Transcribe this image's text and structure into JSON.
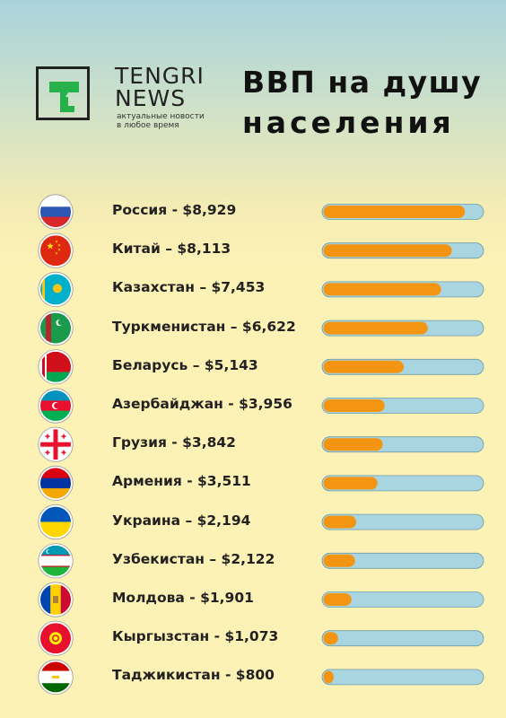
{
  "header": {
    "brand_line1": "TENGRI",
    "brand_line2": "NEWS",
    "tagline_line1": "актуальные новости",
    "tagline_line2": "в любое время",
    "title_line1": "ВВП на душу",
    "title_line2": "населения"
  },
  "colors": {
    "bar_fill": "#f39512",
    "bar_track": "#a9d5e0",
    "logo_green": "#26b14b"
  },
  "chart_data": {
    "type": "bar",
    "orientation": "horizontal",
    "title": "ВВП на душу населения",
    "labels": [
      "Россия - $8,929",
      "Китай – $8,113",
      "Казахстан – $7,453",
      "Туркменистан – $6,622",
      "Беларусь – $5,143",
      "Азербайджан - $3,956",
      "Грузия - $3,842",
      "Армения - $3,511",
      "Украина – $2,194",
      "Узбекистан – $2,122",
      "Молдова - $1,901",
      "Кыргызстан - $1,073",
      "Таджикистан - $800"
    ],
    "flag_icons": [
      "russia-flag-icon",
      "china-flag-icon",
      "kazakhstan-flag-icon",
      "turkmenistan-flag-icon",
      "belarus-flag-icon",
      "azerbaijan-flag-icon",
      "georgia-flag-icon",
      "armenia-flag-icon",
      "ukraine-flag-icon",
      "uzbekistan-flag-icon",
      "moldova-flag-icon",
      "kyrgyzstan-flag-icon",
      "tajikistan-flag-icon"
    ],
    "values": [
      8929,
      8113,
      7453,
      6622,
      5143,
      3956,
      3842,
      3511,
      2194,
      2122,
      1901,
      1073,
      800
    ],
    "xlim": [
      0,
      10000
    ],
    "grid": false,
    "legend": "none"
  }
}
